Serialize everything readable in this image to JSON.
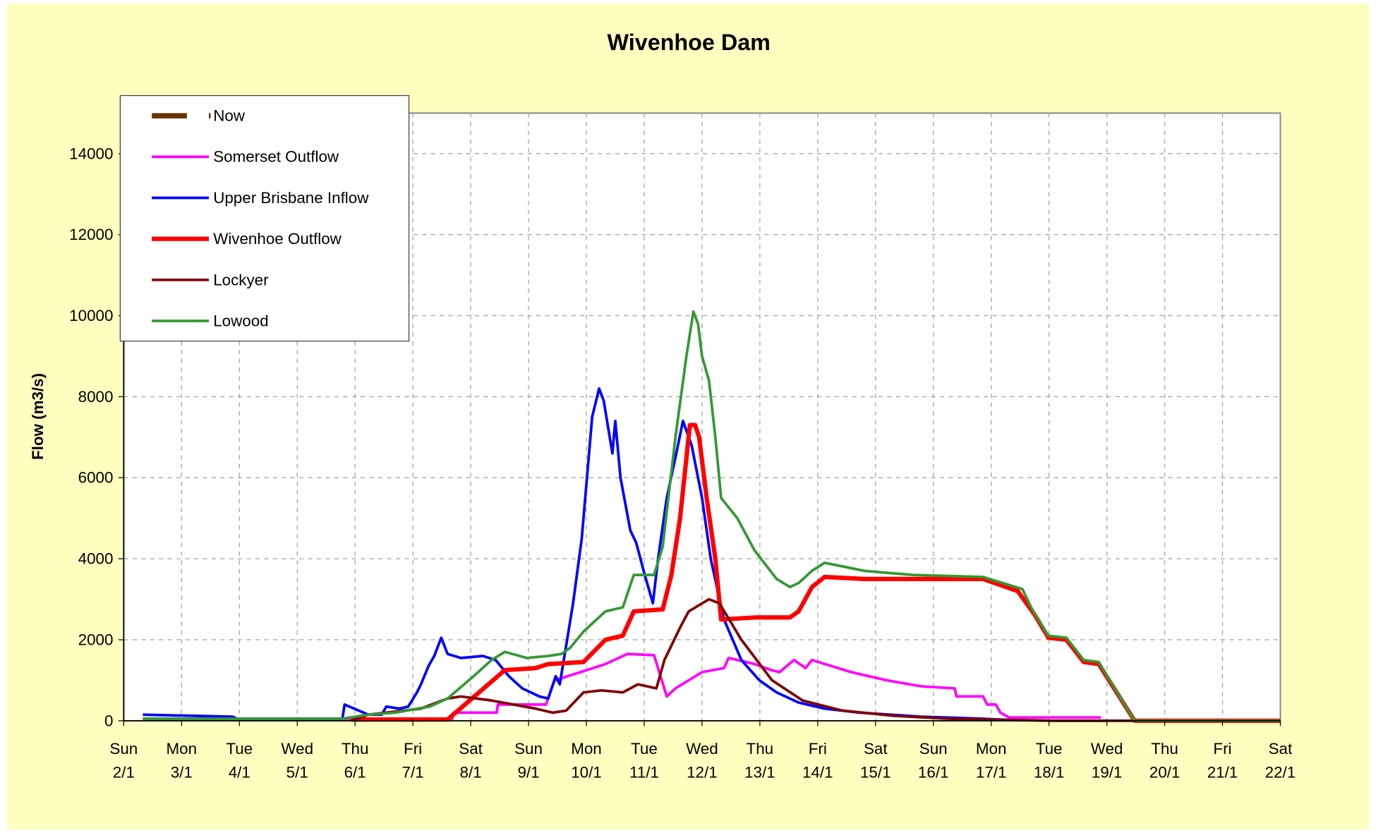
{
  "chart_data": {
    "type": "line",
    "title": "Wivenhoe Dam",
    "y_label": "Flow (m3/s)",
    "xlim": [
      0,
      20
    ],
    "xticks": [
      {
        "value": 0,
        "label": "Sun 2/1"
      },
      {
        "value": 1,
        "label": "Mon 3/1"
      },
      {
        "value": 2,
        "label": "Tue 4/1"
      },
      {
        "value": 3,
        "label": "Wed 5/1"
      },
      {
        "value": 4,
        "label": "Thu 6/1"
      },
      {
        "value": 5,
        "label": "Fri 7/1"
      },
      {
        "value": 6,
        "label": "Sat 8/1"
      },
      {
        "value": 7,
        "label": "Sun 9/1"
      },
      {
        "value": 8,
        "label": "Mon 10/1"
      },
      {
        "value": 9,
        "label": "Tue 11/1"
      },
      {
        "value": 10,
        "label": "Wed 12/1"
      },
      {
        "value": 11,
        "label": "Thu 13/1"
      },
      {
        "value": 12,
        "label": "Fri 14/1"
      },
      {
        "value": 13,
        "label": "Sat 15/1"
      },
      {
        "value": 14,
        "label": "Sun 16/1"
      },
      {
        "value": 15,
        "label": "Mon 17/1"
      },
      {
        "value": 16,
        "label": "Tue 18/1"
      },
      {
        "value": 17,
        "label": "Wed 19/1"
      },
      {
        "value": 18,
        "label": "Thu 20/1"
      },
      {
        "value": 19,
        "label": "Fri 21/1"
      },
      {
        "value": 20,
        "label": "Sat 22/1"
      }
    ],
    "ylim": [
      0,
      15000
    ],
    "yticks": [
      0,
      2000,
      4000,
      6000,
      8000,
      10000,
      12000,
      14000
    ],
    "grid": true,
    "legend": "top-left",
    "series": [
      {
        "name": "Now",
        "color": "#663300",
        "line_width": 6,
        "x": [],
        "values": []
      },
      {
        "name": "Somerset Outflow",
        "color": "#ff00ff",
        "line_width": 3,
        "x": [
          0.33,
          5.68,
          5.7,
          6.45,
          6.47,
          7.3,
          7.45,
          7.57,
          8.33,
          8.71,
          9.17,
          9.39,
          9.54,
          10.0,
          10.38,
          10.46,
          10.91,
          11.2,
          11.34,
          11.59,
          11.79,
          11.9,
          12.58,
          13.19,
          13.79,
          14.37,
          14.4,
          14.86,
          14.93,
          15.08,
          15.16,
          15.31,
          16.9
        ],
        "values": [
          50,
          50,
          200,
          200,
          400,
          400,
          1000,
          1050,
          1400,
          1650,
          1620,
          600,
          800,
          1200,
          1300,
          1550,
          1400,
          1250,
          1200,
          1500,
          1300,
          1500,
          1200,
          1000,
          850,
          800,
          600,
          600,
          400,
          400,
          200,
          80,
          80
        ]
      },
      {
        "name": "Upper Brisbane Inflow",
        "color": "#0000ff",
        "line_width": 3,
        "x": [
          0.33,
          1.88,
          1.96,
          3.78,
          3.82,
          4.23,
          4.46,
          4.54,
          4.76,
          4.92,
          5.07,
          5.14,
          5.27,
          5.37,
          5.49,
          5.6,
          5.83,
          6.21,
          6.43,
          6.66,
          6.89,
          7.19,
          7.34,
          7.47,
          7.54,
          7.69,
          7.77,
          7.92,
          8.1,
          8.22,
          8.3,
          8.45,
          8.5,
          8.59,
          8.76,
          8.86,
          9.01,
          9.15,
          9.24,
          9.39,
          9.54,
          9.67,
          9.82,
          10.0,
          10.15,
          10.38,
          10.68,
          10.99,
          11.29,
          11.67,
          12.12,
          12.73,
          13.79,
          14.86,
          15.31
        ],
        "values": [
          150,
          100,
          50,
          50,
          400,
          150,
          150,
          350,
          300,
          350,
          700,
          900,
          1350,
          1600,
          2050,
          1650,
          1550,
          1600,
          1500,
          1100,
          800,
          600,
          550,
          1100,
          900,
          2200,
          2900,
          4500,
          7500,
          8200,
          7900,
          6600,
          7400,
          6000,
          4700,
          4400,
          3600,
          2900,
          4000,
          5500,
          6500,
          7400,
          6800,
          5500,
          4000,
          2500,
          1500,
          1000,
          700,
          450,
          300,
          200,
          100,
          50,
          20
        ]
      },
      {
        "name": "Wivenhoe Outflow",
        "color": "#ff0000",
        "line_width": 5,
        "x": [
          3.93,
          5.6,
          6.59,
          7.12,
          7.34,
          7.95,
          8.33,
          8.63,
          8.82,
          9.32,
          9.47,
          9.62,
          9.79,
          9.88,
          9.95,
          10.08,
          10.23,
          10.33,
          10.91,
          11.52,
          11.67,
          11.9,
          12.12,
          12.81,
          14.86,
          15.46,
          15.76,
          15.99,
          16.3,
          16.6,
          16.86,
          17.48,
          20
        ],
        "values": [
          30,
          30,
          1250,
          1300,
          1400,
          1450,
          2000,
          2100,
          2700,
          2750,
          3600,
          5000,
          7300,
          7300,
          7000,
          5500,
          4000,
          2500,
          2550,
          2550,
          2700,
          3300,
          3550,
          3500,
          3500,
          3200,
          2600,
          2050,
          2000,
          1450,
          1400,
          0,
          0
        ]
      },
      {
        "name": "Lockyer",
        "color": "#800000",
        "line_width": 3,
        "x": [
          3.93,
          4.23,
          5.14,
          5.6,
          5.83,
          6.36,
          7.12,
          7.42,
          7.65,
          7.95,
          8.26,
          8.63,
          8.89,
          9.21,
          9.35,
          9.62,
          9.77,
          10.12,
          10.3,
          10.68,
          11.21,
          11.74,
          12.43,
          13.34,
          14.25,
          15.31,
          16.07,
          20
        ],
        "values": [
          0,
          150,
          300,
          550,
          600,
          500,
          300,
          200,
          250,
          700,
          750,
          700,
          900,
          800,
          1500,
          2300,
          2700,
          3000,
          2900,
          2000,
          1000,
          500,
          250,
          120,
          50,
          20,
          0,
          0
        ]
      },
      {
        "name": "Lowood",
        "color": "#339933",
        "line_width": 3,
        "x": [
          0.33,
          3.78,
          4.23,
          4.69,
          5.29,
          5.6,
          6.05,
          6.36,
          6.59,
          6.97,
          7.34,
          7.57,
          7.72,
          7.95,
          8.33,
          8.63,
          8.82,
          9.17,
          9.32,
          9.54,
          9.73,
          9.85,
          9.93,
          10.0,
          10.12,
          10.23,
          10.33,
          10.61,
          10.91,
          11.29,
          11.52,
          11.67,
          11.9,
          12.12,
          12.81,
          13.65,
          14.86,
          15.54,
          15.69,
          15.99,
          16.3,
          16.6,
          16.86,
          17.48,
          20
        ],
        "values": [
          50,
          50,
          150,
          200,
          350,
          550,
          1100,
          1500,
          1700,
          1550,
          1600,
          1650,
          1800,
          2200,
          2700,
          2800,
          3600,
          3600,
          4300,
          7000,
          9000,
          10100,
          9800,
          9000,
          8400,
          7000,
          5500,
          5000,
          4200,
          3500,
          3300,
          3400,
          3700,
          3900,
          3700,
          3600,
          3550,
          3250,
          2800,
          2100,
          2050,
          1500,
          1450,
          0,
          0
        ]
      }
    ]
  }
}
